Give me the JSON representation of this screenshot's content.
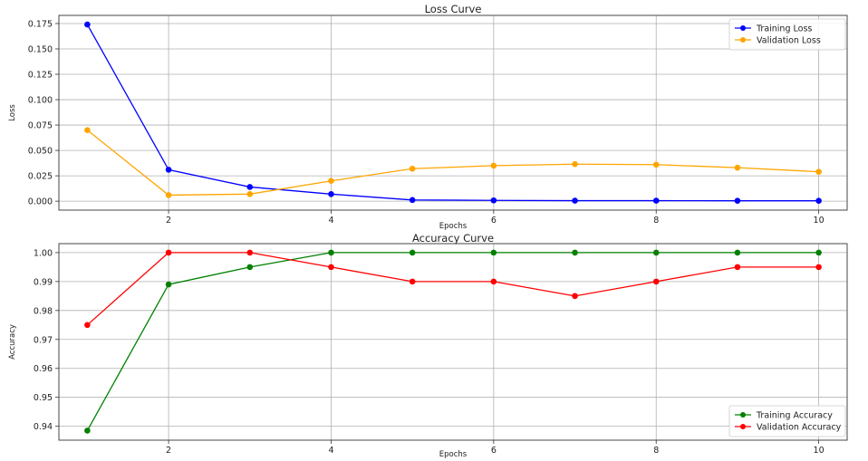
{
  "chart_data": [
    {
      "type": "line",
      "title": "Loss Curve",
      "xlabel": "Epochs",
      "ylabel": "Loss",
      "x": [
        1,
        2,
        3,
        4,
        5,
        6,
        7,
        8,
        9,
        10
      ],
      "xlim": [
        0.65,
        10.35
      ],
      "ylim": [
        -0.0088,
        0.183
      ],
      "xticks": [
        "2",
        "4",
        "6",
        "8",
        "10"
      ],
      "xtick_values": [
        2,
        4,
        6,
        8,
        10
      ],
      "yticks": [
        "0.000",
        "0.025",
        "0.050",
        "0.075",
        "0.100",
        "0.125",
        "0.150",
        "0.175"
      ],
      "ytick_values": [
        0,
        0.025,
        0.05,
        0.075,
        0.1,
        0.125,
        0.15,
        0.175
      ],
      "grid": true,
      "legend": "top-right",
      "series": [
        {
          "name": "Training Loss",
          "color": "#0000ff",
          "values": [
            0.174,
            0.031,
            0.014,
            0.007,
            0.0012,
            0.0008,
            0.0005,
            0.0005,
            0.0004,
            0.0004
          ]
        },
        {
          "name": "Validation Loss",
          "color": "#ffa500",
          "values": [
            0.07,
            0.006,
            0.007,
            0.02,
            0.032,
            0.035,
            0.0365,
            0.036,
            0.033,
            0.029
          ]
        }
      ]
    },
    {
      "type": "line",
      "title": "Accuracy Curve",
      "xlabel": "Epochs",
      "ylabel": "Accuracy",
      "x": [
        1,
        2,
        3,
        4,
        5,
        6,
        7,
        8,
        9,
        10
      ],
      "xlim": [
        0.65,
        10.35
      ],
      "ylim": [
        0.9352,
        1.0031
      ],
      "xticks": [
        "2",
        "4",
        "6",
        "8",
        "10"
      ],
      "xtick_values": [
        2,
        4,
        6,
        8,
        10
      ],
      "yticks": [
        "0.94",
        "0.95",
        "0.96",
        "0.97",
        "0.98",
        "0.99",
        "1.00"
      ],
      "ytick_values": [
        0.94,
        0.95,
        0.96,
        0.97,
        0.98,
        0.99,
        1.0
      ],
      "grid": true,
      "legend": "bottom-right",
      "series": [
        {
          "name": "Training Accuracy",
          "color": "#008000",
          "values": [
            0.9385,
            0.989,
            0.995,
            1.0,
            1.0,
            1.0,
            1.0,
            1.0,
            1.0,
            1.0
          ]
        },
        {
          "name": "Validation Accuracy",
          "color": "#ff0000",
          "values": [
            0.975,
            1.0,
            1.0,
            0.995,
            0.99,
            0.99,
            0.985,
            0.99,
            0.995,
            0.995
          ]
        }
      ]
    }
  ]
}
